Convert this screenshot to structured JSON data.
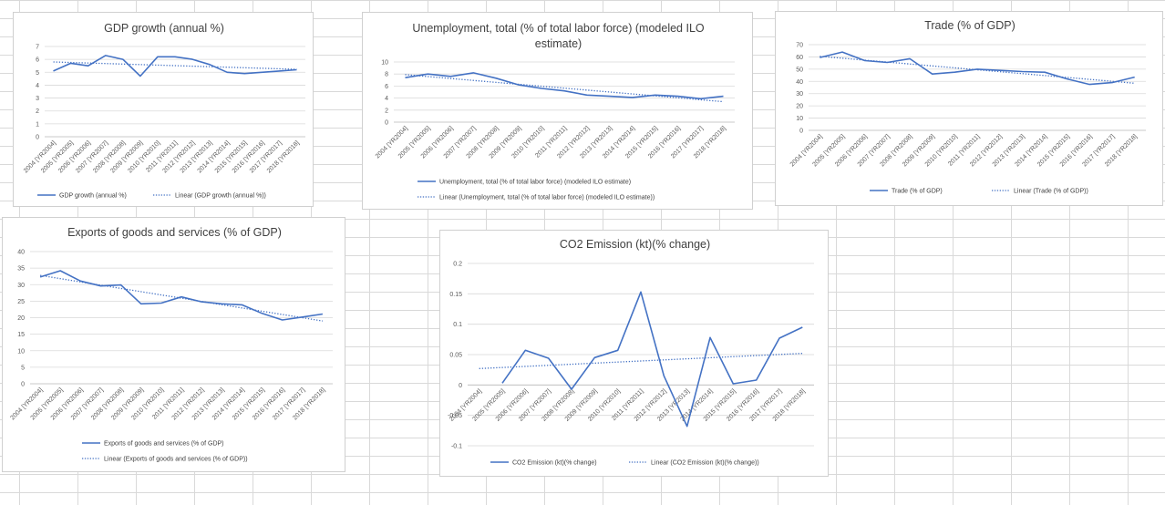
{
  "colors": {
    "series": "#4472c4",
    "grid": "#d9d9d9",
    "text": "#595959"
  },
  "chart_data": [
    {
      "type": "line",
      "title": [
        "GDP growth (annual %)"
      ],
      "categories": [
        "2004 [YR2004]",
        "2005 [YR2005]",
        "2006 [YR2006]",
        "2007 [YR2007]",
        "2008 [YR2008]",
        "2009 [YR2009]",
        "2010 [YR2010]",
        "2011 [YR2011]",
        "2012 [YR2012]",
        "2013 [YR2013]",
        "2014 [YR2014]",
        "2015 [YR2015]",
        "2016 [YR2016]",
        "2017 [YR2017]",
        "2018 [YR2018]"
      ],
      "ylim": [
        0,
        7
      ],
      "yticks": [
        "7",
        "6",
        "5",
        "4",
        "3",
        "2",
        "1",
        "0"
      ],
      "series": [
        {
          "name": "GDP growth (annual %)",
          "values": [
            5.1,
            5.7,
            5.5,
            6.3,
            6.0,
            4.7,
            6.2,
            6.2,
            6.0,
            5.6,
            5.0,
            4.9,
            5.0,
            5.1,
            5.2
          ]
        }
      ],
      "trend": {
        "name": "Linear (GDP growth (annual %))",
        "values": [
          5.8,
          5.23
        ]
      },
      "legend_position": "bottom",
      "grid": true
    },
    {
      "type": "line",
      "title": [
        "Unemployment, total (% of total labor force) (modeled ILO",
        "estimate)"
      ],
      "categories": [
        "2004 [YR2004]",
        "2005 [YR2005]",
        "2006 [YR2006]",
        "2007 [YR2007]",
        "2008 [YR2008]",
        "2009 [YR2009]",
        "2010 [YR2010]",
        "2011 [YR2011]",
        "2012 [YR2012]",
        "2013 [YR2013]",
        "2014 [YR2014]",
        "2015 [YR2015]",
        "2016 [YR2016]",
        "2017 [YR2017]",
        "2018 [YR2018]"
      ],
      "ylim": [
        0,
        10
      ],
      "yticks": [
        "10",
        "8",
        "6",
        "4",
        "2",
        "0"
      ],
      "series": [
        {
          "name": "Unemployment, total (% of total labor force) (modeled ILO estimate)",
          "values": [
            7.4,
            8.0,
            7.6,
            8.2,
            7.3,
            6.2,
            5.6,
            5.2,
            4.5,
            4.3,
            4.1,
            4.5,
            4.3,
            3.9,
            4.3
          ]
        }
      ],
      "trend": {
        "name": "Linear (Unemployment, total (% of total labor force) (modeled ILO estimate))",
        "values": [
          7.9,
          3.4
        ]
      },
      "legend_position": "bottom",
      "grid": true
    },
    {
      "type": "line",
      "title": [
        "Trade (% of GDP)"
      ],
      "categories": [
        "2004 [YR2004]",
        "2005 [YR2005]",
        "2006 [YR2006]",
        "2007 [YR2007]",
        "2008 [YR2008]",
        "2009 [YR2009]",
        "2010 [YR2010]",
        "2011 [YR2011]",
        "2012 [YR2012]",
        "2013 [YR2013]",
        "2014 [YR2014]",
        "2015 [YR2015]",
        "2016 [YR2016]",
        "2017 [YR2017]",
        "2018 [YR2018]"
      ],
      "ylim": [
        0,
        70
      ],
      "yticks": [
        "70",
        "60",
        "50",
        "40",
        "30",
        "20",
        "10",
        "0"
      ],
      "series": [
        {
          "name": "Trade (% of GDP)",
          "values": [
            59.5,
            64.0,
            57.0,
            55.5,
            58.5,
            46.0,
            47.5,
            50.0,
            49.0,
            48.0,
            47.5,
            42.0,
            37.5,
            39.0,
            43.5
          ]
        }
      ],
      "trend": {
        "name": "Linear (Trade (% of GDP))",
        "values": [
          60.5,
          38.5
        ]
      },
      "legend_position": "bottom",
      "grid": true
    },
    {
      "type": "line",
      "title": [
        "Exports of goods and services (% of GDP)"
      ],
      "categories": [
        "2004 [YR2004]",
        "2005 [YR2005]",
        "2006 [YR2006]",
        "2007 [YR2007]",
        "2008 [YR2008]",
        "2009 [YR2009]",
        "2010 [YR2010]",
        "2011 [YR2011]",
        "2012 [YR2012]",
        "2013 [YR2013]",
        "2014 [YR2014]",
        "2015 [YR2015]",
        "2016 [YR2016]",
        "2017 [YR2017]",
        "2018 [YR2018]"
      ],
      "ylim": [
        0,
        40
      ],
      "yticks": [
        "40",
        "35",
        "30",
        "25",
        "20",
        "15",
        "10",
        "5",
        "0"
      ],
      "series": [
        {
          "name": "Exports of goods and services (% of GDP)",
          "values": [
            32.3,
            34.2,
            31.1,
            29.6,
            29.9,
            24.2,
            24.4,
            26.3,
            24.8,
            24.2,
            23.9,
            21.3,
            19.3,
            20.2,
            21.1
          ]
        }
      ],
      "trend": {
        "name": "Linear (Exports of goods and services (% of GDP))",
        "values": [
          32.8,
          19.0
        ]
      },
      "legend_position": "bottom",
      "grid": true
    },
    {
      "type": "line",
      "title": [
        "CO2 Emission (kt)(% change)"
      ],
      "categories": [
        "2004 [YR2004]",
        "2005 [YR2005]",
        "2006 [YR2006]",
        "2007 [YR2007]",
        "2008 [YR2008]",
        "2009 [YR2009]",
        "2010 [YR2010]",
        "2011 [YR2011]",
        "2012 [YR2012]",
        "2013 [YR2013]",
        "2014 [YR2014]",
        "2015 [YR2015]",
        "2016 [YR2016]",
        "2017 [YR2017]",
        "2018 [YR2018]"
      ],
      "ylim": [
        -0.1,
        0.2
      ],
      "yticks": [
        "0.2",
        "0.15",
        "0.1",
        "0.05",
        "0",
        "-0.05",
        "-0.1"
      ],
      "series": [
        {
          "name": "CO2 Emission (kt)(% change)",
          "values": [
            null,
            0.003,
            0.057,
            0.044,
            -0.007,
            0.045,
            0.057,
            0.153,
            0.015,
            -0.068,
            0.078,
            0.002,
            0.008,
            0.077,
            0.095
          ]
        }
      ],
      "trend": {
        "name": "Linear (CO2 Emission (kt)(% change))",
        "values": [
          0.027,
          0.052
        ]
      },
      "legend_position": "bottom",
      "grid": true
    }
  ]
}
